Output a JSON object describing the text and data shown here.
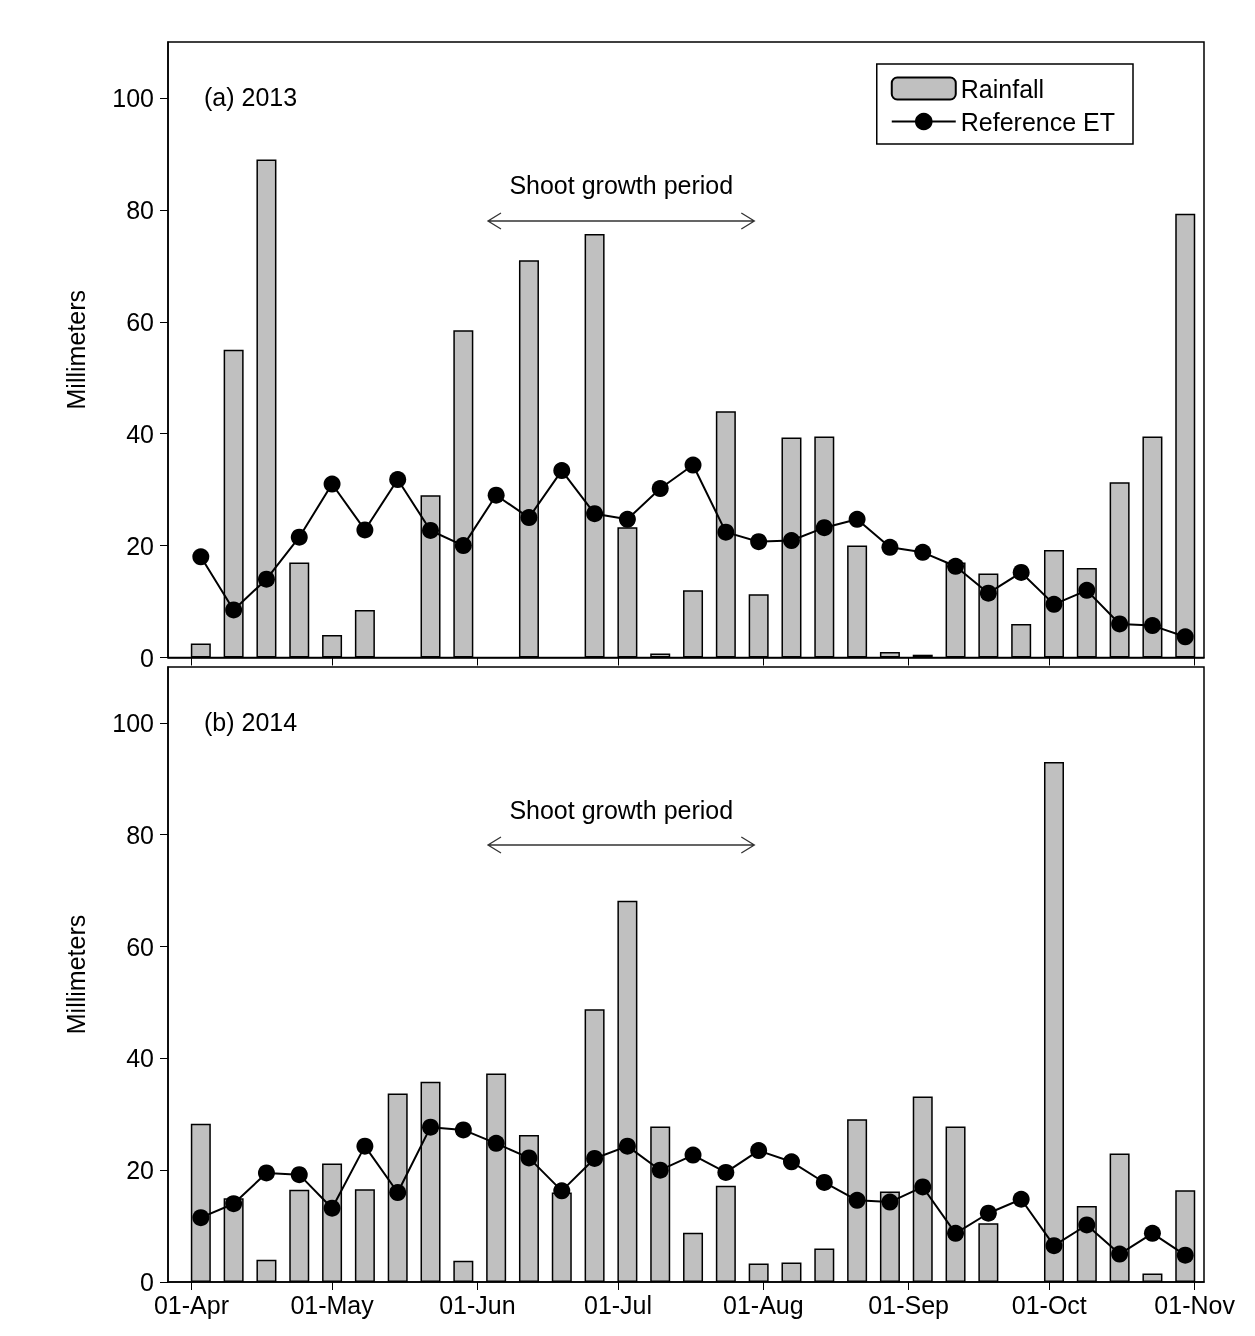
{
  "chart_data": [
    {
      "type": "bar",
      "ylabel": "Millimeters",
      "annotations": [
        "(a) 2013",
        "Shoot growth period"
      ],
      "x": [
        "--04-03",
        "--04-10",
        "--04-17",
        "--04-24",
        "--05-01",
        "--05-08",
        "--05-15",
        "--05-22",
        "--05-29",
        "--06-05",
        "--06-12",
        "--06-19",
        "--06-26",
        "--07-03",
        "--07-10",
        "--07-17",
        "--07-24",
        "--07-31",
        "--08-07",
        "--08-14",
        "--08-21",
        "--08-28",
        "--09-04",
        "--09-11",
        "--09-18",
        "--09-25",
        "--10-02",
        "--10-09",
        "--10-16",
        "--10-23",
        "--10-30"
      ],
      "series": [
        {
          "name": "Rainfall",
          "color": "#c0c0c0",
          "values": [
            2.5,
            55,
            89,
            17,
            4,
            8.5,
            null,
            29,
            58.5,
            null,
            71,
            null,
            75.7,
            23.3,
            0.7,
            12,
            44,
            11.3,
            39.3,
            39.5,
            20,
            1,
            0.5,
            17,
            15,
            6,
            19.2,
            16,
            31.3,
            39.5,
            79.3
          ]
        },
        {
          "name": "Reference ET",
          "type": "line",
          "color": "#000000",
          "values": [
            18,
            8.5,
            14,
            21.5,
            31,
            22.8,
            31.8,
            22.7,
            20,
            29,
            25,
            33.4,
            25.7,
            24.7,
            30.2,
            34.4,
            22.4,
            20.7,
            20.9,
            23.2,
            24.7,
            19.7,
            18.8,
            16.3,
            11.5,
            15.2,
            9.5,
            12,
            6,
            5.7,
            3.7
          ]
        }
      ],
      "xlim": [
        "--03-27",
        "--11-03"
      ],
      "xticks": [
        {
          "value": "--04-01",
          "label": "01-Apr"
        },
        {
          "value": "--05-01",
          "label": "01-May"
        },
        {
          "value": "--06-01",
          "label": "01-Jun"
        },
        {
          "value": "--07-01",
          "label": "01-Jul"
        },
        {
          "value": "--08-01",
          "label": "01-Aug"
        },
        {
          "value": "--09-01",
          "label": "01-Sep"
        },
        {
          "value": "--10-01",
          "label": "01-Oct"
        },
        {
          "value": "--11-01",
          "label": "01-Nov"
        }
      ],
      "ylim": [
        0,
        110
      ],
      "yticks": [
        0,
        20,
        40,
        60,
        80,
        100
      ],
      "tick_labels": "y",
      "legend": "top right",
      "marker": "circle",
      "line_style": "solid"
    },
    {
      "type": "bar",
      "ylabel": "Millimeters",
      "annotations": [
        "(b) 2014",
        "Shoot growth period"
      ],
      "x": [
        "--04-03",
        "--04-10",
        "--04-17",
        "--04-24",
        "--05-01",
        "--05-08",
        "--05-15",
        "--05-22",
        "--05-29",
        "--06-05",
        "--06-12",
        "--06-19",
        "--06-26",
        "--07-03",
        "--07-10",
        "--07-17",
        "--07-24",
        "--07-31",
        "--08-07",
        "--08-14",
        "--08-21",
        "--08-28",
        "--09-04",
        "--09-11",
        "--09-18",
        "--09-25",
        "--10-02",
        "--10-09",
        "--10-16",
        "--10-23",
        "--10-30"
      ],
      "series": [
        {
          "color": "#c0c0c0",
          "values": [
            28.3,
            15,
            4,
            16.5,
            21.2,
            16.6,
            33.7,
            35.8,
            3.8,
            37.3,
            26.3,
            16,
            48.8,
            68.2,
            27.8,
            8.8,
            17.2,
            3.3,
            3.5,
            6,
            29.1,
            16.2,
            33.2,
            27.8,
            10.5,
            null,
            93,
            13.6,
            23,
            1.5,
            16.4
          ]
        },
        {
          "type": "line",
          "color": "#000000",
          "values": [
            11.5,
            14,
            19.5,
            19.2,
            13.2,
            24.3,
            16,
            27.7,
            27.2,
            24.8,
            22.2,
            16.3,
            22.1,
            24.3,
            20,
            22.7,
            19.6,
            23.5,
            21.5,
            17.8,
            14.6,
            14.3,
            17,
            8.7,
            12.3,
            14.8,
            6.5,
            10.2,
            5,
            8.7,
            4.8
          ]
        }
      ],
      "xlim": [
        "--03-27",
        "--11-03"
      ],
      "xticks": [
        {
          "value": "--04-01",
          "label": "01-Apr"
        },
        {
          "value": "--05-01",
          "label": "01-May"
        },
        {
          "value": "--06-01",
          "label": "01-Jun"
        },
        {
          "value": "--07-01",
          "label": "01-Jul"
        },
        {
          "value": "--08-01",
          "label": "01-Aug"
        },
        {
          "value": "--09-01",
          "label": "01-Sep"
        },
        {
          "value": "--10-01",
          "label": "01-Oct"
        },
        {
          "value": "--11-01",
          "label": "01-Nov"
        }
      ],
      "ylim": [
        0,
        110
      ],
      "yticks": [
        0,
        20,
        40,
        60,
        80,
        100
      ],
      "marker": "circle",
      "line_style": "solid"
    }
  ]
}
